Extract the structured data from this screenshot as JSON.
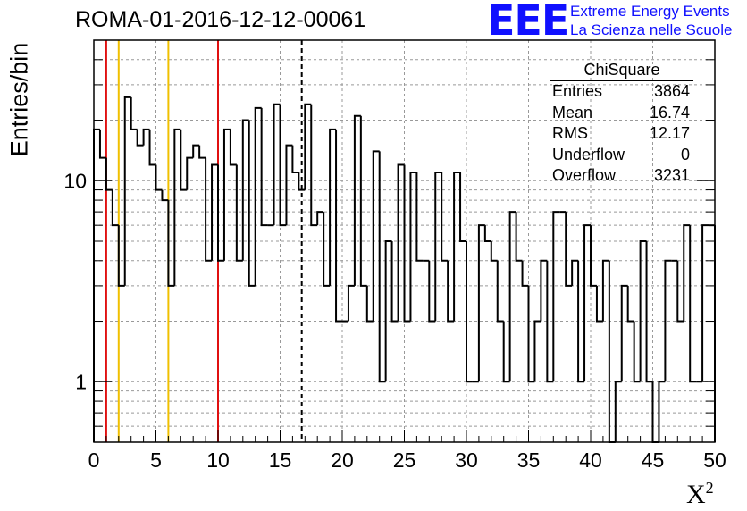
{
  "header": {
    "title": "ROMA-01-2016-12-12-00061",
    "logo_text": "EEE",
    "logo_line1": "Extreme Energy Events",
    "logo_line2": "La Scienza nelle Scuole"
  },
  "stats_box": {
    "title": "ChiSquare",
    "rows": [
      {
        "label": "Entries",
        "value": "3864"
      },
      {
        "label": "Mean",
        "value": "16.74"
      },
      {
        "label": "RMS",
        "value": "12.17"
      },
      {
        "label": "Underflow",
        "value": "0"
      },
      {
        "label": "Overflow",
        "value": "3231"
      }
    ]
  },
  "colors": {
    "histogram": "#000000",
    "grid": "#999999",
    "red_line": "#e01010",
    "yellow_line": "#f0c000",
    "mean_line": "#000000",
    "logo": "#1010ff"
  },
  "chart_data": {
    "type": "bar",
    "subtype": "step-histogram",
    "title": "ROMA-01-2016-12-12-00061",
    "xlabel": "Χ",
    "xlabel_superscript": "2",
    "ylabel": "Entries/bin",
    "xlim": [
      0,
      50
    ],
    "ylim": [
      0.5,
      50
    ],
    "y_scale": "log",
    "grid": true,
    "bin_width": 0.5,
    "x_ticks": [
      "0",
      "5",
      "10",
      "15",
      "20",
      "25",
      "30",
      "35",
      "40",
      "45",
      "50"
    ],
    "y_ticks": [
      "1",
      "10"
    ],
    "values": [
      18,
      13,
      9,
      6,
      3,
      26,
      18,
      15,
      18,
      12,
      9,
      8,
      3,
      18,
      9,
      13,
      15,
      13,
      4,
      12,
      4,
      18,
      12,
      4,
      20,
      3,
      23,
      6,
      6,
      24,
      6,
      15,
      11,
      9,
      24,
      6,
      7,
      3,
      18,
      2,
      2,
      3,
      21,
      3,
      2,
      14,
      1,
      5,
      2,
      12,
      2,
      11,
      4,
      4,
      2,
      11,
      4,
      2,
      11,
      5,
      1,
      1,
      6,
      5,
      4,
      2,
      1,
      7,
      4,
      3,
      1,
      2,
      4,
      1,
      7,
      7,
      3,
      4,
      1,
      6,
      3,
      2,
      4,
      0.5,
      1,
      3,
      2,
      1,
      5,
      1,
      0.5,
      1,
      4,
      4,
      2,
      6,
      1,
      1,
      6,
      6
    ],
    "vertical_lines": [
      {
        "x": 1,
        "color": "red",
        "style": "solid"
      },
      {
        "x": 2,
        "color": "yellow",
        "style": "solid"
      },
      {
        "x": 6,
        "color": "yellow",
        "style": "solid"
      },
      {
        "x": 10,
        "color": "red",
        "style": "solid"
      },
      {
        "x": 16.74,
        "color": "black",
        "style": "dashed"
      }
    ]
  }
}
